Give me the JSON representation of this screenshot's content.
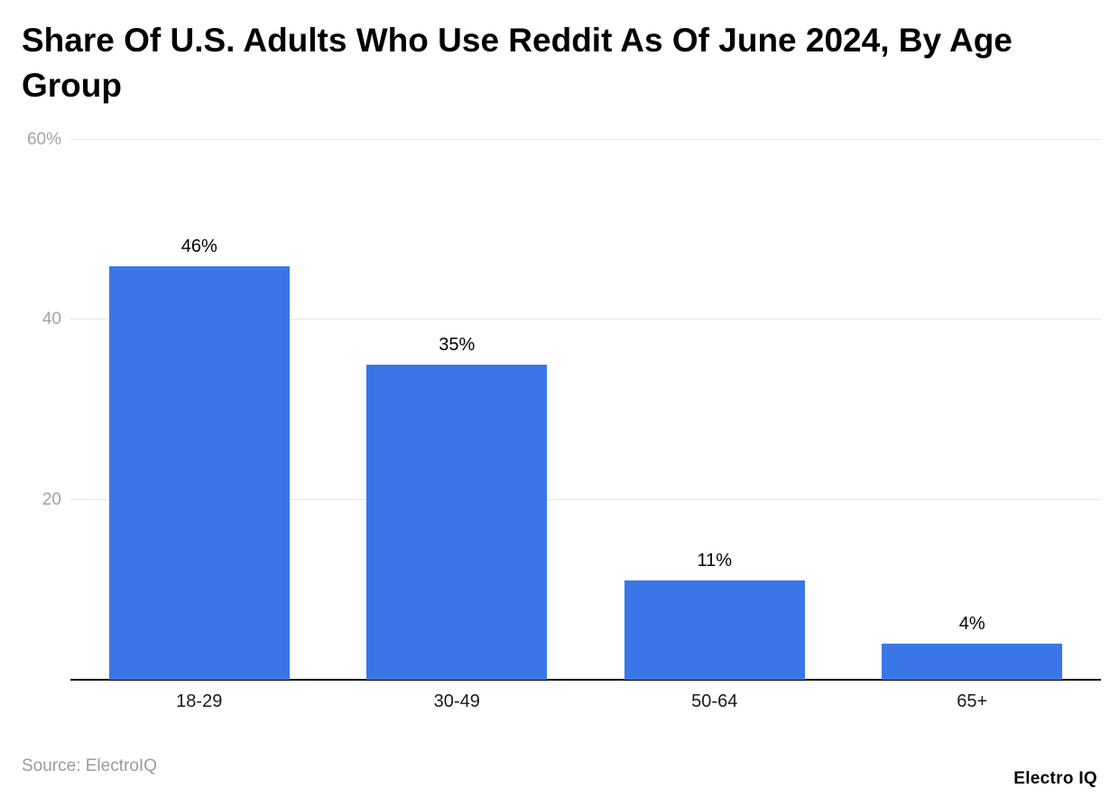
{
  "header": {
    "title": "Share Of U.S. Adults Who Use Reddit As Of June 2024, By Age Group"
  },
  "chart_data": {
    "type": "bar",
    "title": "Share Of U.S. Adults Who Use Reddit As Of June 2024, By Age Group",
    "categories": [
      "18-29",
      "30-49",
      "50-64",
      "65+"
    ],
    "values": [
      46,
      35,
      11,
      4
    ],
    "value_labels": [
      "46%",
      "35%",
      "11%",
      "4%"
    ],
    "xlabel": "",
    "ylabel": "",
    "ylim": [
      0,
      60
    ],
    "yticks": [
      20,
      40,
      60
    ],
    "ytick_labels": [
      "20",
      "40",
      "60%"
    ],
    "grid": true,
    "legend": "none",
    "bar_color": "#3b76e8"
  },
  "footer": {
    "source": "Source: ElectroIQ",
    "brand": "Electro IQ"
  }
}
